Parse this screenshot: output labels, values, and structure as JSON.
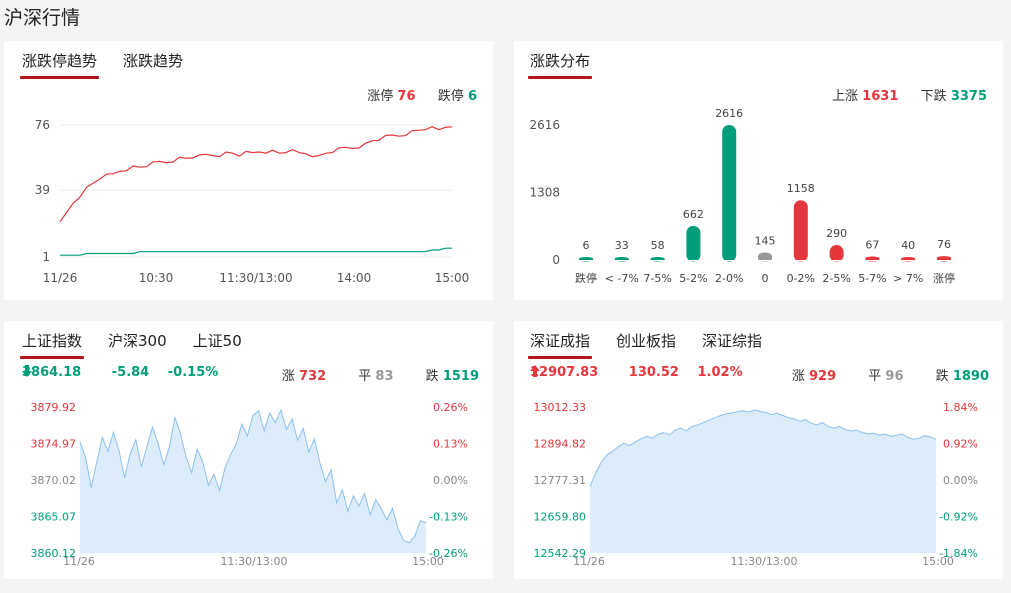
{
  "page_title": "沪深行情",
  "colors": {
    "up": "#e5363b",
    "down": "#009e7a",
    "flat": "#999999",
    "area": "#dcecfb",
    "area_line": "#8cc1ef",
    "accent": "#b5121b"
  },
  "limit_panel": {
    "tabs": [
      "涨跌停趋势",
      "涨跌趋势"
    ],
    "legend": {
      "limit_up_label": "涨停",
      "limit_up_value": "76",
      "limit_down_label": "跌停",
      "limit_down_value": "6"
    }
  },
  "dist_panel": {
    "tabs": [
      "涨跌分布"
    ],
    "legend": {
      "up_label": "上涨",
      "up_value": "1631",
      "down_label": "下跌",
      "down_value": "3375"
    }
  },
  "sh_panel": {
    "tabs": [
      "上证指数",
      "沪深300",
      "上证50"
    ],
    "quote": {
      "price": "3864.18",
      "change": "-5.84",
      "pct": "-0.15%",
      "up_label": "涨",
      "up_count": "732",
      "flat_label": "平",
      "flat_count": "83",
      "down_label": "跌",
      "down_count": "1519"
    }
  },
  "sz_panel": {
    "tabs": [
      "深证成指",
      "创业板指",
      "深证综指"
    ],
    "quote": {
      "price": "12907.83",
      "change": "130.52",
      "pct": "1.02%",
      "up_label": "涨",
      "up_count": "929",
      "flat_label": "平",
      "flat_count": "96",
      "down_label": "跌",
      "down_count": "1890"
    }
  },
  "chart_data": [
    {
      "type": "line",
      "yticks": [
        "76",
        "39",
        "1"
      ],
      "ylim": [
        1,
        76
      ],
      "xticks": [
        "11/26",
        "10:30",
        "11:30/13:00",
        "14:00",
        "15:00"
      ],
      "grid": true,
      "series": [
        {
          "name": "涨停",
          "values": [
            20,
            26,
            32,
            36,
            40,
            43,
            46,
            47,
            48,
            50,
            51,
            52,
            52,
            53,
            54,
            55,
            55,
            56,
            57,
            57,
            58,
            58,
            59,
            59,
            59,
            60,
            60,
            59,
            60,
            60,
            61,
            61,
            61,
            60,
            61,
            61,
            60,
            60,
            59,
            58,
            60,
            61,
            62,
            63,
            63,
            64,
            65,
            67,
            68,
            69,
            70,
            70,
            71,
            72,
            73,
            74,
            74,
            73,
            75,
            76
          ]
        },
        {
          "name": "跌停",
          "values": [
            2,
            2,
            2,
            2,
            3,
            3,
            3,
            3,
            3,
            3,
            3,
            3,
            4,
            4,
            4,
            4,
            4,
            4,
            4,
            4,
            4,
            4,
            4,
            4,
            4,
            4,
            4,
            4,
            4,
            4,
            4,
            4,
            4,
            4,
            4,
            4,
            4,
            4,
            4,
            4,
            4,
            4,
            4,
            4,
            4,
            4,
            4,
            4,
            4,
            4,
            4,
            4,
            4,
            4,
            4,
            4,
            5,
            5,
            6,
            6
          ]
        }
      ]
    },
    {
      "type": "bar",
      "categories": [
        "跌停",
        "< -7%",
        "7-5%",
        "5-2%",
        "2-0%",
        "0",
        "0-2%",
        "2-5%",
        "5-7%",
        "> 7%",
        "涨停"
      ],
      "values": [
        6,
        33,
        58,
        662,
        2616,
        145,
        1158,
        290,
        67,
        40,
        76
      ],
      "bar_colors": [
        "down",
        "down",
        "down",
        "down",
        "down",
        "flat",
        "up",
        "up",
        "up",
        "up",
        "up"
      ],
      "yticks": [
        "2616",
        "1308",
        "0"
      ],
      "ylim": [
        0,
        2616
      ]
    },
    {
      "type": "area",
      "left_ticks": [
        "3879.92",
        "3874.97",
        "3870.02",
        "3865.07",
        "3860.12"
      ],
      "right_ticks": [
        "0.26%",
        "0.13%",
        "0.00%",
        "-0.13%",
        "-0.26%"
      ],
      "ylim": [
        3860.12,
        3879.92
      ],
      "xticks": [
        "11/26",
        "11:30/13:00",
        "15:00"
      ],
      "values": [
        3875.2,
        3873.1,
        3869.0,
        3872.4,
        3875.8,
        3873.9,
        3876.5,
        3874.0,
        3870.3,
        3873.6,
        3875.5,
        3871.8,
        3874.6,
        3877.2,
        3875.0,
        3872.1,
        3874.4,
        3878.5,
        3876.3,
        3873.2,
        3871.0,
        3874.2,
        3872.5,
        3869.3,
        3870.8,
        3868.6,
        3871.7,
        3873.5,
        3874.9,
        3877.6,
        3876.0,
        3878.8,
        3879.4,
        3876.7,
        3879.1,
        3877.8,
        3879.5,
        3876.9,
        3878.3,
        3875.4,
        3877.0,
        3873.8,
        3875.6,
        3872.3,
        3869.8,
        3871.4,
        3866.9,
        3868.7,
        3865.8,
        3867.9,
        3866.5,
        3868.2,
        3865.3,
        3867.4,
        3866.1,
        3864.6,
        3866.2,
        3863.4,
        3861.8,
        3861.5,
        3862.4,
        3864.5,
        3864.2
      ]
    },
    {
      "type": "area",
      "left_ticks": [
        "13012.33",
        "12894.82",
        "12777.31",
        "12659.80",
        "12542.29"
      ],
      "right_ticks": [
        "1.84%",
        "0.92%",
        "0.00%",
        "-0.92%",
        "-1.84%"
      ],
      "ylim": [
        12542.29,
        13012.33
      ],
      "xticks": [
        "11/26",
        "11:30/13:00",
        "15:00"
      ],
      "values": [
        12757,
        12800,
        12835,
        12858,
        12870,
        12885,
        12895,
        12888,
        12900,
        12910,
        12918,
        12912,
        12925,
        12930,
        12922,
        12938,
        12944,
        12936,
        12950,
        12955,
        12962,
        12970,
        12978,
        12985,
        12990,
        12993,
        12997,
        13000,
        12996,
        13003,
        12998,
        12995,
        12988,
        12992,
        12985,
        12978,
        12974,
        12966,
        12972,
        12960,
        12955,
        12962,
        12950,
        12944,
        12950,
        12940,
        12935,
        12938,
        12930,
        12926,
        12928,
        12922,
        12925,
        12918,
        12921,
        12925,
        12915,
        12908,
        12912,
        12920,
        12916,
        12908
      ]
    }
  ]
}
